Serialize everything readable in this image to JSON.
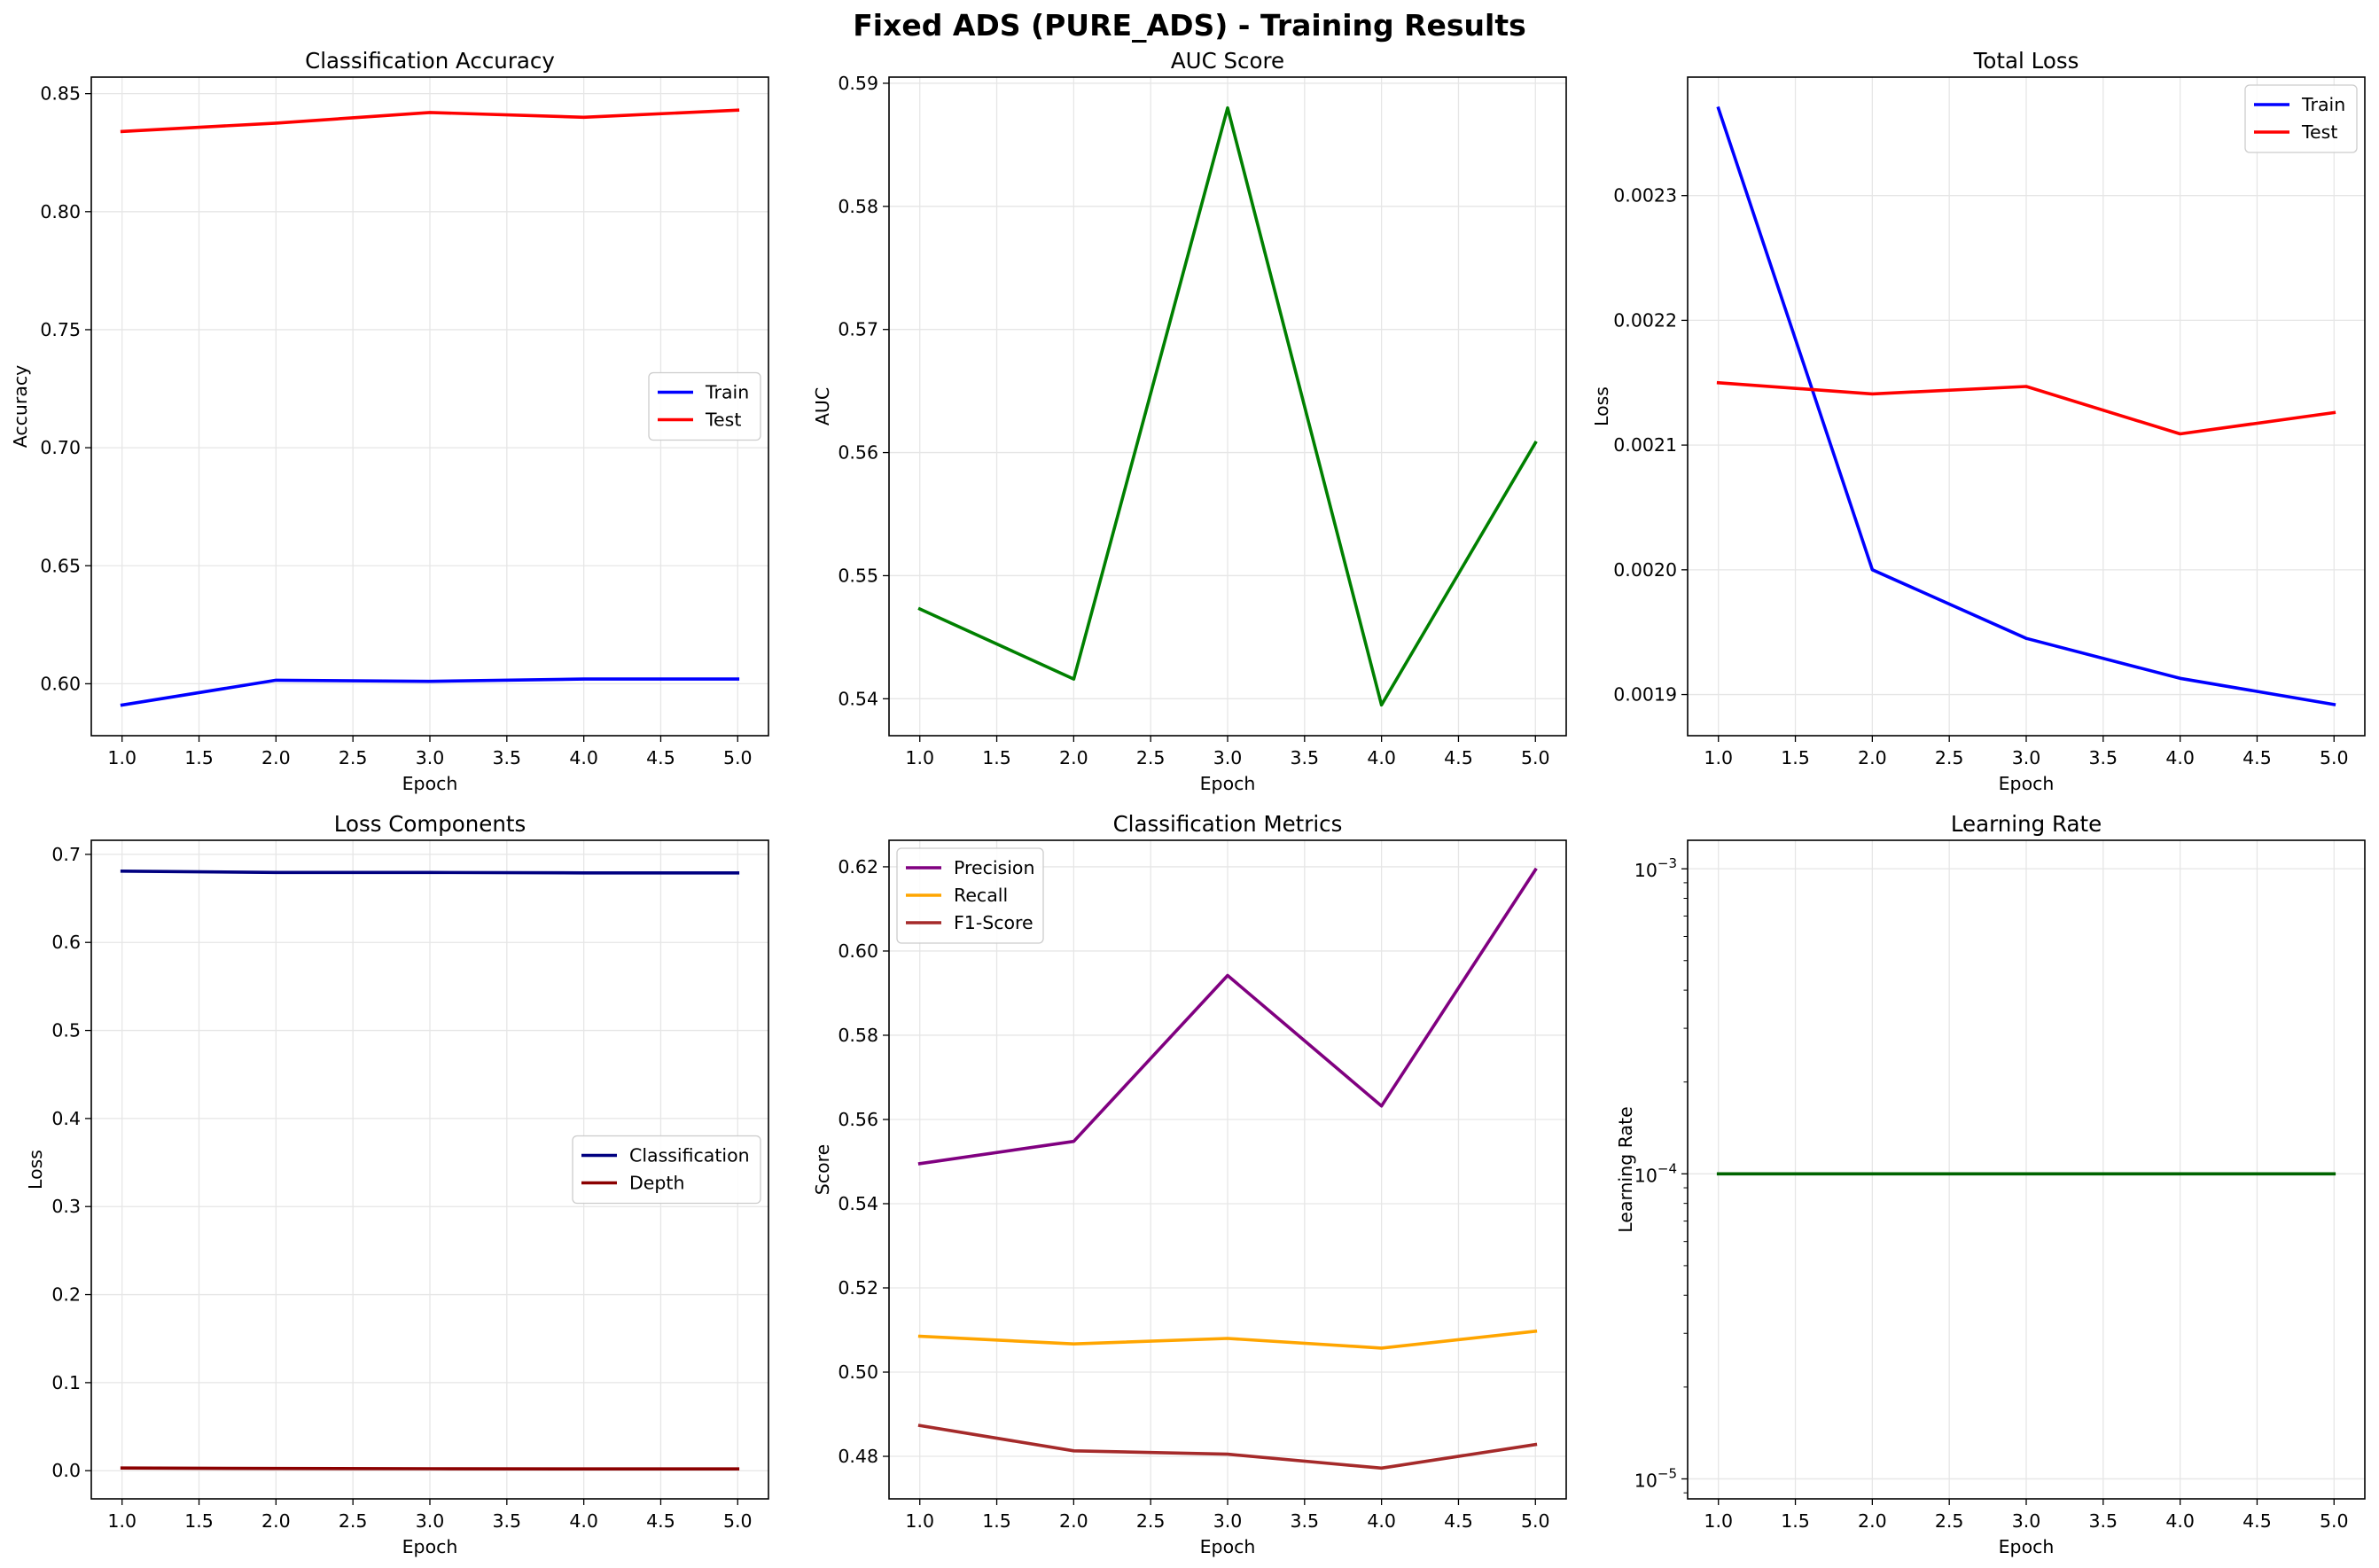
{
  "figure_title": "Fixed ADS (PURE_ADS) - Training Results",
  "colors": {
    "train": "#0000ff",
    "test": "#ff0000",
    "auc": "#008000",
    "classification": "#000080",
    "depth": "#8b0000",
    "precision": "#800080",
    "recall": "#ffa500",
    "f1": "#a52a2a",
    "lr": "#006400",
    "grid": "#e6e6e6"
  },
  "chart_data": [
    {
      "id": "acc",
      "type": "line",
      "title": "Classification Accuracy",
      "xlabel": "Epoch",
      "ylabel": "Accuracy",
      "xlim": [
        0.8,
        5.2
      ],
      "ylim": [
        0.578,
        0.857
      ],
      "xticks": [
        1.0,
        1.5,
        2.0,
        2.5,
        3.0,
        3.5,
        4.0,
        4.5,
        5.0
      ],
      "xtick_labels": [
        "1.0",
        "1.5",
        "2.0",
        "2.5",
        "3.0",
        "3.5",
        "4.0",
        "4.5",
        "5.0"
      ],
      "yticks": [
        0.6,
        0.65,
        0.7,
        0.75,
        0.8,
        0.85
      ],
      "ytick_labels": [
        "0.60",
        "0.65",
        "0.70",
        "0.75",
        "0.80",
        "0.85"
      ],
      "scale": "linear",
      "grid": true,
      "legend": "center-right",
      "x": [
        1,
        2,
        3,
        4,
        5
      ],
      "series": [
        {
          "name": "Train",
          "color_key": "train",
          "values": [
            0.591,
            0.6015,
            0.601,
            0.602,
            0.602
          ]
        },
        {
          "name": "Test",
          "color_key": "test",
          "values": [
            0.834,
            0.8375,
            0.842,
            0.84,
            0.843
          ]
        }
      ]
    },
    {
      "id": "auc",
      "type": "line",
      "title": "AUC Score",
      "xlabel": "Epoch",
      "ylabel": "AUC",
      "xlim": [
        0.8,
        5.2
      ],
      "ylim": [
        0.537,
        0.5905
      ],
      "xticks": [
        1.0,
        1.5,
        2.0,
        2.5,
        3.0,
        3.5,
        4.0,
        4.5,
        5.0
      ],
      "xtick_labels": [
        "1.0",
        "1.5",
        "2.0",
        "2.5",
        "3.0",
        "3.5",
        "4.0",
        "4.5",
        "5.0"
      ],
      "yticks": [
        0.54,
        0.55,
        0.56,
        0.57,
        0.58,
        0.59
      ],
      "ytick_labels": [
        "0.54",
        "0.55",
        "0.56",
        "0.57",
        "0.58",
        "0.59"
      ],
      "scale": "linear",
      "grid": true,
      "legend": "none",
      "x": [
        1,
        2,
        3,
        4,
        5
      ],
      "series": [
        {
          "color_key": "auc",
          "values": [
            0.5473,
            0.5416,
            0.588,
            0.5395,
            0.5608
          ]
        }
      ]
    },
    {
      "id": "loss",
      "type": "line",
      "title": "Total Loss",
      "xlabel": "Epoch",
      "ylabel": "Loss",
      "xlim": [
        0.8,
        5.2
      ],
      "ylim": [
        0.001867,
        0.002395
      ],
      "xticks": [
        1.0,
        1.5,
        2.0,
        2.5,
        3.0,
        3.5,
        4.0,
        4.5,
        5.0
      ],
      "xtick_labels": [
        "1.0",
        "1.5",
        "2.0",
        "2.5",
        "3.0",
        "3.5",
        "4.0",
        "4.5",
        "5.0"
      ],
      "yticks": [
        0.0019,
        0.002,
        0.0021,
        0.0022,
        0.0023
      ],
      "ytick_labels": [
        "0.0019",
        "0.0020",
        "0.0021",
        "0.0022",
        "0.0023"
      ],
      "scale": "linear",
      "grid": true,
      "legend": "top-right",
      "x": [
        1,
        2,
        3,
        4,
        5
      ],
      "series": [
        {
          "name": "Train",
          "color_key": "train",
          "values": [
            0.00237,
            0.002,
            0.001945,
            0.001913,
            0.001892
          ]
        },
        {
          "name": "Test",
          "color_key": "test",
          "values": [
            0.00215,
            0.002141,
            0.002147,
            0.002109,
            0.002126
          ]
        }
      ]
    },
    {
      "id": "components",
      "type": "line",
      "title": "Loss Components",
      "xlabel": "Epoch",
      "ylabel": "Loss",
      "xlim": [
        0.8,
        5.2
      ],
      "ylim": [
        -0.032,
        0.716
      ],
      "xticks": [
        1.0,
        1.5,
        2.0,
        2.5,
        3.0,
        3.5,
        4.0,
        4.5,
        5.0
      ],
      "xtick_labels": [
        "1.0",
        "1.5",
        "2.0",
        "2.5",
        "3.0",
        "3.5",
        "4.0",
        "4.5",
        "5.0"
      ],
      "yticks": [
        0.0,
        0.1,
        0.2,
        0.3,
        0.4,
        0.5,
        0.6,
        0.7
      ],
      "ytick_labels": [
        "0.0",
        "0.1",
        "0.2",
        "0.3",
        "0.4",
        "0.5",
        "0.6",
        "0.7"
      ],
      "scale": "linear",
      "grid": true,
      "legend": "center-right",
      "x": [
        1,
        2,
        3,
        4,
        5
      ],
      "series": [
        {
          "name": "Classification",
          "color_key": "classification",
          "values": [
            0.681,
            0.6795,
            0.6795,
            0.679,
            0.679
          ]
        },
        {
          "name": "Depth",
          "color_key": "depth",
          "values": [
            0.003,
            0.0025,
            0.0022,
            0.002,
            0.002
          ]
        }
      ]
    },
    {
      "id": "metrics",
      "type": "line",
      "title": "Classification Metrics",
      "xlabel": "Epoch",
      "ylabel": "Score",
      "xlim": [
        0.8,
        5.2
      ],
      "ylim": [
        0.4699,
        0.6263
      ],
      "xticks": [
        1.0,
        1.5,
        2.0,
        2.5,
        3.0,
        3.5,
        4.0,
        4.5,
        5.0
      ],
      "xtick_labels": [
        "1.0",
        "1.5",
        "2.0",
        "2.5",
        "3.0",
        "3.5",
        "4.0",
        "4.5",
        "5.0"
      ],
      "yticks": [
        0.48,
        0.5,
        0.52,
        0.54,
        0.56,
        0.58,
        0.6,
        0.62
      ],
      "ytick_labels": [
        "0.48",
        "0.50",
        "0.52",
        "0.54",
        "0.56",
        "0.58",
        "0.60",
        "0.62"
      ],
      "scale": "linear",
      "grid": true,
      "legend": "top-left",
      "x": [
        1,
        2,
        3,
        4,
        5
      ],
      "series": [
        {
          "name": "Precision",
          "color_key": "precision",
          "values": [
            0.5495,
            0.5548,
            0.5942,
            0.5632,
            0.6193
          ]
        },
        {
          "name": "Recall",
          "color_key": "recall",
          "values": [
            0.5085,
            0.5067,
            0.508,
            0.5057,
            0.5097
          ]
        },
        {
          "name": "F1-Score",
          "color_key": "f1",
          "values": [
            0.4873,
            0.4813,
            0.4805,
            0.4772,
            0.4828
          ]
        }
      ]
    },
    {
      "id": "lr",
      "type": "line",
      "title": "Learning Rate",
      "xlabel": "Epoch",
      "ylabel": "Learning Rate",
      "xlim": [
        0.8,
        5.2
      ],
      "ylim": [
        8.6e-06,
        0.00124
      ],
      "xticks": [
        1.0,
        1.5,
        2.0,
        2.5,
        3.0,
        3.5,
        4.0,
        4.5,
        5.0
      ],
      "xtick_labels": [
        "1.0",
        "1.5",
        "2.0",
        "2.5",
        "3.0",
        "3.5",
        "4.0",
        "4.5",
        "5.0"
      ],
      "yticks": [
        1e-05,
        0.0001,
        0.001
      ],
      "ytick_labels": [
        {
          "base": "10",
          "exp": "−5"
        },
        {
          "base": "10",
          "exp": "−4"
        },
        {
          "base": "10",
          "exp": "−3"
        }
      ],
      "scale": "log",
      "grid": true,
      "legend": "none",
      "x": [
        1,
        2,
        3,
        4,
        5
      ],
      "series": [
        {
          "color_key": "lr",
          "values": [
            0.0001,
            0.0001,
            0.0001,
            0.0001,
            0.0001
          ]
        }
      ]
    }
  ]
}
